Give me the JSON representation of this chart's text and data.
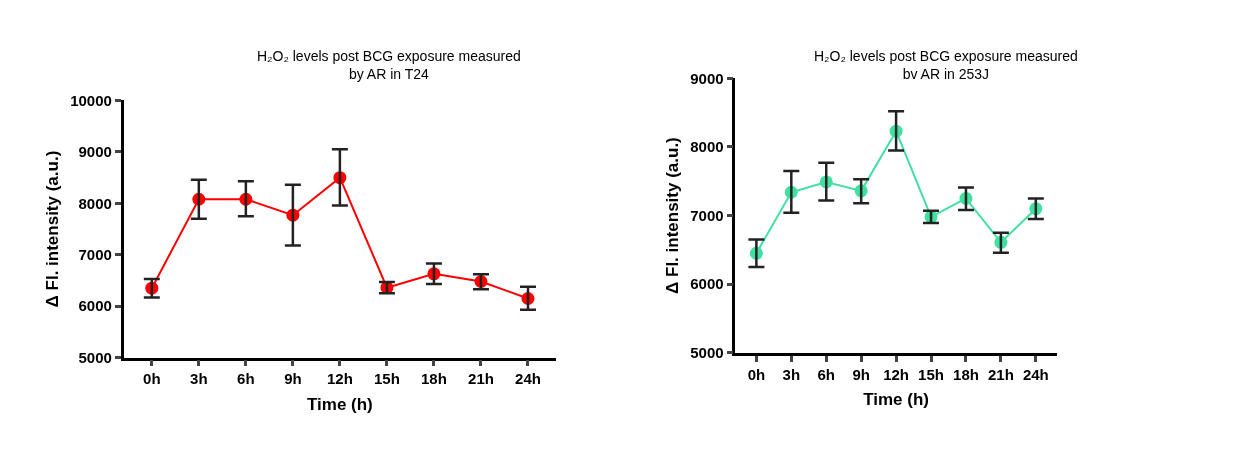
{
  "chart_data": [
    {
      "type": "line",
      "title": "H₂O₂ levels post BCG exposure measured\nby AR in T24",
      "xlabel": "Time (h)",
      "ylabel": "Δ Fl. intensity (a.u.)",
      "categories": [
        "0h",
        "3h",
        "6h",
        "9h",
        "12h",
        "15h",
        "18h",
        "21h",
        "24h"
      ],
      "ylim": [
        5000,
        10000
      ],
      "yticks": [
        5000,
        6000,
        7000,
        8000,
        9000,
        10000
      ],
      "marker": "circle",
      "line_style": "solid",
      "series": [
        {
          "color": "#ff0000",
          "values": [
            6350,
            8080,
            8080,
            7770,
            8500,
            6360,
            6630,
            6480,
            6150
          ],
          "errors": [
            [
              6170,
              6530
            ],
            [
              7700,
              8460
            ],
            [
              7750,
              8430
            ],
            [
              7180,
              8360
            ],
            [
              7960,
              9050
            ],
            [
              6250,
              6470
            ],
            [
              6430,
              6830
            ],
            [
              6330,
              6620
            ],
            [
              5930,
              6380
            ]
          ]
        }
      ]
    },
    {
      "type": "line",
      "title": "H₂O₂ levels post BCG exposure measured\nbv AR in 253J",
      "xlabel": "Time (h)",
      "ylabel": "Δ Fl. intensity (a.u.)",
      "categories": [
        "0h",
        "3h",
        "6h",
        "9h",
        "12h",
        "15h",
        "18h",
        "21h",
        "24h"
      ],
      "ylim": [
        5000,
        9000
      ],
      "yticks": [
        5000,
        6000,
        7000,
        8000,
        9000
      ],
      "marker": "circle",
      "line_style": "solid",
      "series": [
        {
          "color": "#40e0a0",
          "values": [
            6450,
            7340,
            7490,
            7360,
            8230,
            6980,
            7250,
            6610,
            7100
          ],
          "errors": [
            [
              6250,
              6650
            ],
            [
              7040,
              7650
            ],
            [
              7220,
              7770
            ],
            [
              7180,
              7530
            ],
            [
              7950,
              8520
            ],
            [
              6890,
              7070
            ],
            [
              7080,
              7410
            ],
            [
              6460,
              6750
            ],
            [
              6950,
              7250
            ]
          ]
        }
      ]
    }
  ]
}
